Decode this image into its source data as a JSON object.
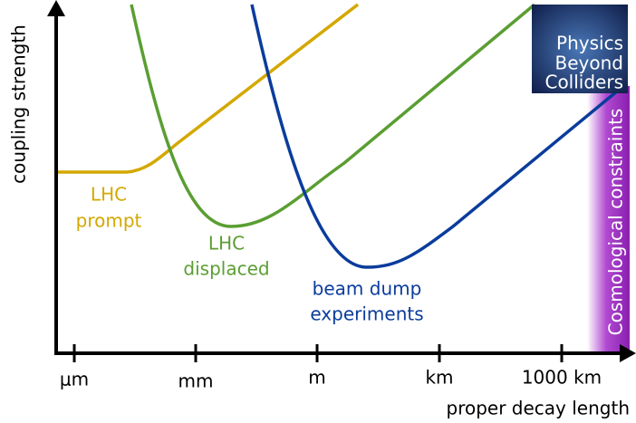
{
  "axes": {
    "y_label": "coupling strength",
    "x_label": "proper decay length",
    "x_ticks": [
      "μm",
      "mm",
      "m",
      "km",
      "1000 km"
    ]
  },
  "curves": {
    "prompt": [
      "LHC",
      "prompt"
    ],
    "displaced": [
      "LHC",
      "displaced"
    ],
    "beam_dump": [
      "beam dump",
      "experiments"
    ]
  },
  "band": "Cosmological constraints",
  "logo": [
    "Physics",
    "Beyond",
    "Colliders"
  ]
}
